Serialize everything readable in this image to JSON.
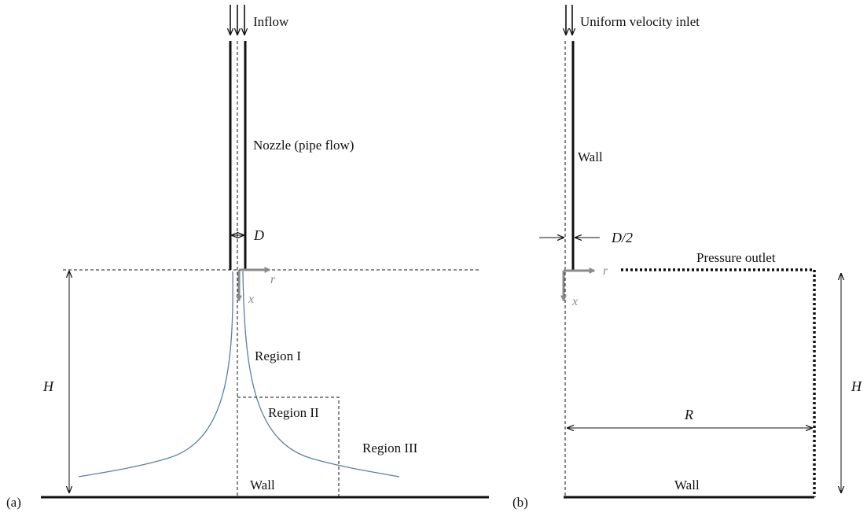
{
  "colors": {
    "line": "#111111",
    "axis_arrow": "#8a8a8a",
    "streamline": "#5b7fa6",
    "background": "#ffffff"
  },
  "panel_a": {
    "tag": "(a)",
    "inflow": "Inflow",
    "nozzle": "Nozzle (pipe flow)",
    "diameter": "D",
    "axis_r": "r",
    "axis_x": "x",
    "height": "H",
    "region_1": "Region I",
    "region_2": "Region II",
    "region_3": "Region III",
    "wall": "Wall"
  },
  "panel_b": {
    "tag": "(b)",
    "inlet": "Uniform velocity inlet",
    "pipe_wall": "Wall",
    "half_diameter": "D/2",
    "pressure_outlet": "Pressure outlet",
    "axis_r": "r",
    "axis_x": "x",
    "height": "H",
    "radius": "R",
    "wall": "Wall"
  }
}
